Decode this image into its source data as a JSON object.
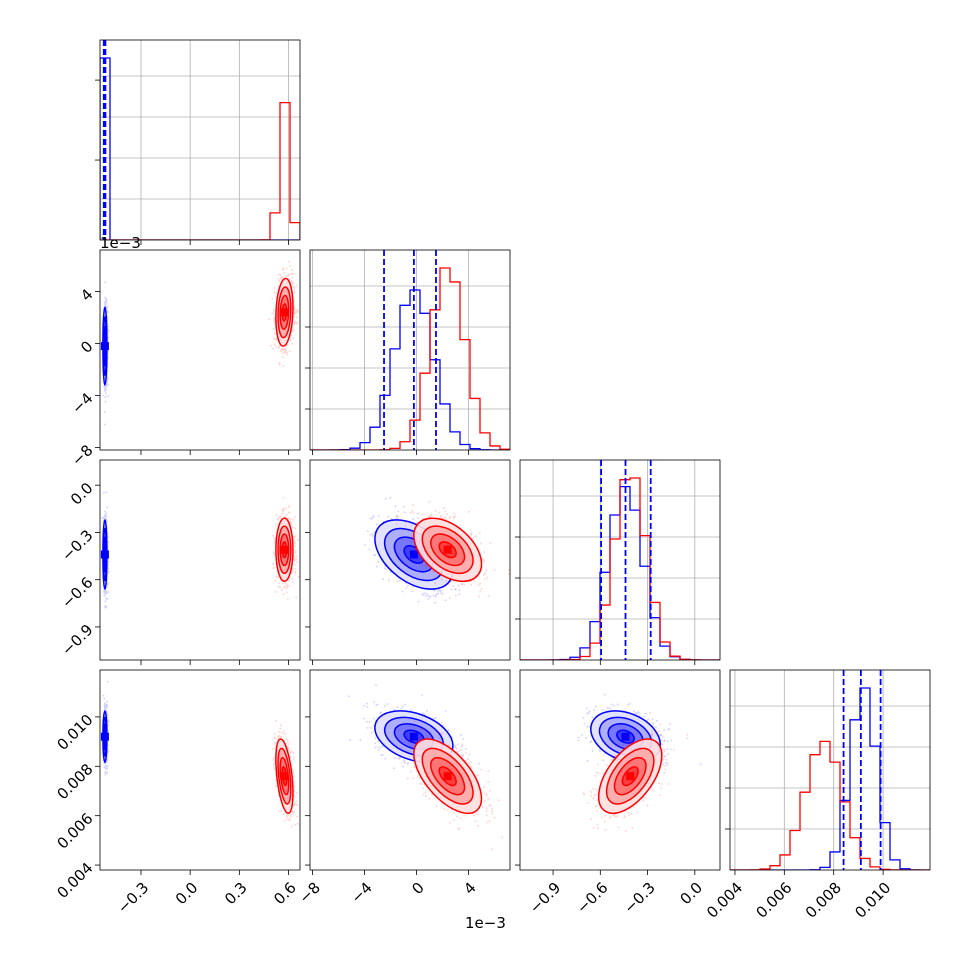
{
  "chart_data": {
    "type": "corner",
    "grid": true,
    "series": [
      {
        "name": "",
        "color": "#0000ff",
        "mean": [
          -0.52,
          -0.0002,
          -0.44,
          0.0092
        ],
        "std": [
          0.006,
          0.0015,
          0.11,
          0.00052
        ],
        "corr": {
          "0-1": 0,
          "0-2": 0,
          "0-3": 0,
          "1-2": -0.45,
          "1-3": -0.35,
          "2-3": -0.3
        }
      },
      {
        "name": "",
        "color": "#ff0000",
        "mean": [
          0.575,
          0.0024,
          -0.41,
          0.0076
        ],
        "std": [
          0.026,
          0.0013,
          0.1,
          0.00075
        ],
        "corr": {
          "0-1": 0.15,
          "0-2": 0,
          "0-3": -0.45,
          "1-2": -0.45,
          "1-3": -0.6,
          "2-3": 0.55
        }
      }
    ],
    "quantile_lines": [
      [
        -0.527,
        -0.522,
        -0.517
      ],
      [
        -0.0025,
        -0.0002,
        0.0015
      ],
      [
        -0.595,
        -0.44,
        -0.28
      ],
      [
        0.0084,
        0.0091,
        0.0099
      ]
    ],
    "axes": [
      {
        "range": [
          -0.55,
          0.67
        ],
        "ticks": [
          -0.3,
          0.0,
          0.3,
          0.6
        ],
        "labels": [
          "−0.3",
          "0.0",
          "0.3",
          "0.6"
        ]
      },
      {
        "range": [
          -0.0082,
          0.0072
        ],
        "ticks": [
          -0.008,
          -0.004,
          0.0,
          0.004
        ],
        "labels": [
          "−8",
          "−4",
          "0",
          "4"
        ],
        "offset": "1e−3"
      },
      {
        "range": [
          -1.11,
          0.16
        ],
        "ticks": [
          -0.9,
          -0.6,
          -0.3,
          0.0
        ],
        "labels": [
          "−0.9",
          "−0.6",
          "−0.3",
          "0.0"
        ]
      },
      {
        "range": [
          0.0038,
          0.0119
        ],
        "ticks": [
          0.004,
          0.006,
          0.008,
          0.01
        ],
        "labels": [
          "0.004",
          "0.006",
          "0.008",
          "0.010"
        ]
      }
    ]
  }
}
